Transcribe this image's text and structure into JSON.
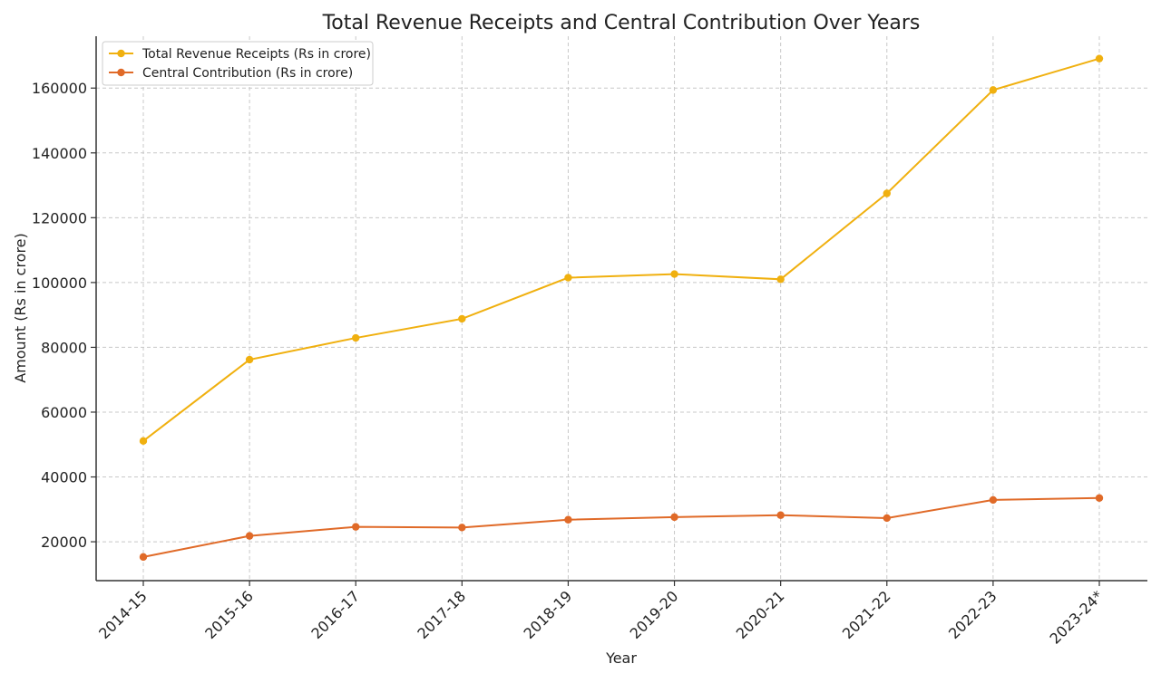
{
  "chart_data": {
    "type": "line",
    "title": "Total Revenue Receipts and Central Contribution Over Years",
    "xlabel": "Year",
    "ylabel": "Amount (Rs in crore)",
    "categories": [
      "2014-15",
      "2015-16",
      "2016-17",
      "2017-18",
      "2018-19",
      "2019-20",
      "2020-21",
      "2021-22",
      "2022-23",
      "2023-24*"
    ],
    "ylim": [
      8000,
      176000
    ],
    "yticks": [
      20000,
      40000,
      60000,
      80000,
      100000,
      120000,
      140000,
      160000
    ],
    "grid": true,
    "legend_position": "top-left",
    "series": [
      {
        "name": "Total Revenue Receipts (Rs in crore)",
        "color": "#F0B00F",
        "values": [
          51100,
          76200,
          82900,
          88800,
          101500,
          102600,
          101000,
          127500,
          159400,
          169100
        ]
      },
      {
        "name": "Central Contribution (Rs in crore)",
        "color": "#E06A28",
        "values": [
          15300,
          21800,
          24600,
          24400,
          26800,
          27600,
          28200,
          27300,
          32900,
          33500
        ]
      }
    ]
  }
}
